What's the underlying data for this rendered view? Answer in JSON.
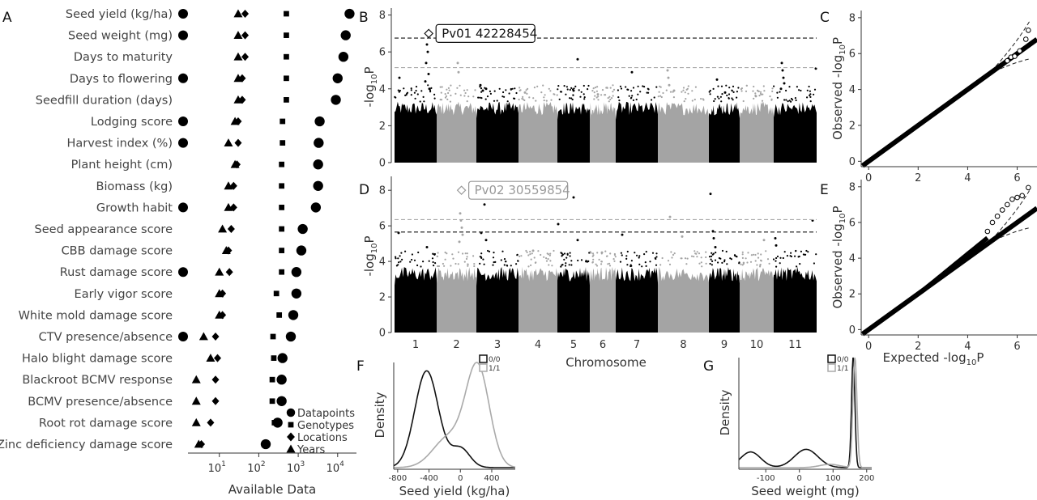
{
  "chart_data": [
    {
      "panel": "A",
      "type": "scatter",
      "xlabel": "Available Data",
      "xscale": "log",
      "xlim": [
        1.6,
        30000
      ],
      "x_ticks": [
        {
          "v": 10,
          "b": "10",
          "e": "1"
        },
        {
          "v": 100,
          "b": "10",
          "e": "2"
        },
        {
          "v": 1000,
          "b": "10",
          "e": "3"
        },
        {
          "v": 10000,
          "b": "10",
          "e": "4"
        }
      ],
      "legend": {
        "placement": "bottom-right",
        "items": [
          {
            "label": "Datapoints",
            "shape": "circle"
          },
          {
            "label": "Genotypes",
            "shape": "square"
          },
          {
            "label": "Locations",
            "shape": "diamond"
          },
          {
            "label": "Years",
            "shape": "triangle"
          }
        ]
      },
      "traits": [
        {
          "label": "Seed yield (kg/ha)",
          "datapoints": 20000,
          "genotypes": 500,
          "locations": 45,
          "years": 30,
          "circle_left": true
        },
        {
          "label": "Seed weight (mg)",
          "datapoints": 16000,
          "genotypes": 500,
          "locations": 45,
          "years": 30,
          "circle_left": true
        },
        {
          "label": "Days to maturity",
          "datapoints": 14000,
          "genotypes": 500,
          "locations": 45,
          "years": 30,
          "circle_left": false
        },
        {
          "label": "Days to flowering",
          "datapoints": 10000,
          "genotypes": 500,
          "locations": 38,
          "years": 30,
          "circle_left": true
        },
        {
          "label": "Seedfill duration (days)",
          "datapoints": 9000,
          "genotypes": 500,
          "locations": 38,
          "years": 30,
          "circle_left": false
        },
        {
          "label": "Lodging score",
          "datapoints": 3500,
          "genotypes": 400,
          "locations": 30,
          "years": 25,
          "circle_left": true
        },
        {
          "label": "Harvest index (%)",
          "datapoints": 3300,
          "genotypes": 400,
          "locations": 30,
          "years": 17,
          "circle_left": true
        },
        {
          "label": "Plant height (cm)",
          "datapoints": 3200,
          "genotypes": 380,
          "locations": 28,
          "years": 25,
          "circle_left": false
        },
        {
          "label": "Biomass (kg)",
          "datapoints": 3200,
          "genotypes": 380,
          "locations": 23,
          "years": 17,
          "circle_left": false
        },
        {
          "label": "Growth habit",
          "datapoints": 2800,
          "genotypes": 380,
          "locations": 23,
          "years": 17,
          "circle_left": true
        },
        {
          "label": "Seed appearance score",
          "datapoints": 1300,
          "genotypes": 380,
          "locations": 20,
          "years": 12,
          "circle_left": false
        },
        {
          "label": "CBB damage score",
          "datapoints": 1200,
          "genotypes": 380,
          "locations": 17,
          "years": 15,
          "circle_left": false
        },
        {
          "label": "Rust damage score",
          "datapoints": 900,
          "genotypes": 380,
          "locations": 18,
          "years": 10,
          "circle_left": true
        },
        {
          "label": "Early vigor score",
          "datapoints": 900,
          "genotypes": 280,
          "locations": 12,
          "years": 10,
          "circle_left": false
        },
        {
          "label": "White mold damage score",
          "datapoints": 750,
          "genotypes": 330,
          "locations": 12,
          "years": 10,
          "circle_left": false
        },
        {
          "label": "CTV presence/absence",
          "datapoints": 650,
          "genotypes": 230,
          "locations": 8,
          "years": 4,
          "circle_left": true
        },
        {
          "label": "Halo blight damage score",
          "datapoints": 400,
          "genotypes": 240,
          "locations": 9,
          "years": 6,
          "circle_left": false
        },
        {
          "label": "Blackroot BCMV response",
          "datapoints": 380,
          "genotypes": 220,
          "locations": 8,
          "years": 2.6,
          "circle_left": false
        },
        {
          "label": "BCMV presence/absence",
          "datapoints": 380,
          "genotypes": 220,
          "locations": 8,
          "years": 2.6,
          "circle_left": false
        },
        {
          "label": "Root rot damage score",
          "datapoints": 300,
          "genotypes": 250,
          "locations": 6,
          "years": 2.6,
          "circle_left": false
        },
        {
          "label": "Zinc deficiency damage score",
          "datapoints": 150,
          "genotypes": 140,
          "locations": 3.5,
          "years": 3,
          "circle_left": false
        }
      ]
    },
    {
      "panel": "B",
      "type": "scatter",
      "xlabel": "",
      "ylabel": "-log10P",
      "ylim": [
        0,
        8.2
      ],
      "y_ticks": [
        0,
        2,
        4,
        6,
        8
      ],
      "chromosome_mb": [
        52,
        49,
        52,
        48,
        40,
        32,
        52,
        63,
        38,
        42,
        53
      ],
      "baseline_max": 3.3,
      "thresholds": [
        {
          "y": 6.75,
          "color": "#111111"
        },
        {
          "y": 5.15,
          "color": "#aaaaaa"
        }
      ],
      "annotation": {
        "text": "Pv01 42228454",
        "chr": 1,
        "pos": 42.2,
        "y": 7.0
      },
      "peaks": [
        {
          "chr": 1,
          "pos": 40,
          "y": 6.4
        },
        {
          "chr": 1,
          "pos": 41,
          "y": 6.0
        },
        {
          "chr": 1,
          "pos": 39,
          "y": 5.4
        },
        {
          "chr": 1,
          "pos": 42,
          "y": 4.8
        },
        {
          "chr": 1,
          "pos": 6,
          "y": 4.6
        },
        {
          "chr": 1,
          "pos": 38,
          "y": 4.4
        },
        {
          "chr": 1,
          "pos": 43,
          "y": 4.0
        },
        {
          "chr": 2,
          "pos": 26,
          "y": 5.4
        },
        {
          "chr": 2,
          "pos": 27,
          "y": 4.9
        },
        {
          "chr": 3,
          "pos": 5,
          "y": 4.2
        },
        {
          "chr": 3,
          "pos": 8,
          "y": 3.9
        },
        {
          "chr": 3,
          "pos": 12,
          "y": 4.0
        },
        {
          "chr": 4,
          "pos": 8,
          "y": 3.8
        },
        {
          "chr": 5,
          "pos": 25,
          "y": 5.6
        },
        {
          "chr": 5,
          "pos": 20,
          "y": 3.9
        },
        {
          "chr": 6,
          "pos": 10,
          "y": 3.7
        },
        {
          "chr": 7,
          "pos": 20,
          "y": 4.9
        },
        {
          "chr": 8,
          "pos": 12,
          "y": 5.0
        },
        {
          "chr": 8,
          "pos": 13,
          "y": 4.6
        },
        {
          "chr": 8,
          "pos": 14,
          "y": 4.2
        },
        {
          "chr": 8,
          "pos": 20,
          "y": 3.9
        },
        {
          "chr": 9,
          "pos": 10,
          "y": 4.5
        },
        {
          "chr": 9,
          "pos": 20,
          "y": 3.8
        },
        {
          "chr": 10,
          "pos": 20,
          "y": 3.6
        },
        {
          "chr": 11,
          "pos": 10,
          "y": 5.4
        },
        {
          "chr": 11,
          "pos": 11,
          "y": 5.0
        },
        {
          "chr": 11,
          "pos": 12,
          "y": 4.6
        },
        {
          "chr": 11,
          "pos": 13,
          "y": 4.3
        },
        {
          "chr": 11,
          "pos": 9,
          "y": 4.0
        },
        {
          "chr": 11,
          "pos": 52,
          "y": 5.1
        }
      ]
    },
    {
      "panel": "C",
      "type": "scatter",
      "xlabel": "",
      "ylabel": "Observed -log10P",
      "xlim": [
        -0.3,
        6.8
      ],
      "ylim": [
        -0.3,
        8.4
      ],
      "x_ticks": [
        0,
        2,
        4,
        6
      ],
      "y_ticks": [
        0,
        2,
        4,
        6,
        8
      ],
      "expected_max": 6.45,
      "tail": [
        {
          "x": 5.6,
          "y": 5.6
        },
        {
          "x": 5.75,
          "y": 5.8
        },
        {
          "x": 5.9,
          "y": 5.85
        },
        {
          "x": 6.1,
          "y": 6.15
        },
        {
          "x": 6.35,
          "y": 6.8
        },
        {
          "x": 6.45,
          "y": 7.3
        }
      ]
    },
    {
      "panel": "D",
      "type": "scatter",
      "xlabel": "Chromosome",
      "ylabel": "-log10P",
      "ylim": [
        0,
        8.6
      ],
      "y_ticks": [
        0,
        2,
        4,
        6,
        8
      ],
      "chromosomes": [
        "1",
        "2",
        "3",
        "4",
        "5",
        "6",
        "7",
        "8",
        "9",
        "10",
        "11"
      ],
      "chromosome_mb": [
        52,
        49,
        52,
        48,
        40,
        32,
        52,
        63,
        38,
        42,
        53
      ],
      "baseline_max": 3.7,
      "thresholds": [
        {
          "y": 6.35,
          "color": "#aaaaaa"
        },
        {
          "y": 5.65,
          "color": "#111111"
        }
      ],
      "annotation": {
        "text": "Pv02 30559854",
        "chr": 2,
        "pos": 30.6,
        "y": 8.0
      },
      "peaks": [
        {
          "chr": 1,
          "pos": 5,
          "y": 5.6
        },
        {
          "chr": 1,
          "pos": 40,
          "y": 4.8
        },
        {
          "chr": 2,
          "pos": 29,
          "y": 6.7
        },
        {
          "chr": 2,
          "pos": 30,
          "y": 6.3
        },
        {
          "chr": 2,
          "pos": 31,
          "y": 5.9
        },
        {
          "chr": 2,
          "pos": 32,
          "y": 5.5
        },
        {
          "chr": 2,
          "pos": 28,
          "y": 5.1
        },
        {
          "chr": 3,
          "pos": 10,
          "y": 7.2
        },
        {
          "chr": 3,
          "pos": 6,
          "y": 5.6
        },
        {
          "chr": 3,
          "pos": 12,
          "y": 5.2
        },
        {
          "chr": 4,
          "pos": 18,
          "y": 4.6
        },
        {
          "chr": 5,
          "pos": 1,
          "y": 6.1
        },
        {
          "chr": 5,
          "pos": 20,
          "y": 7.6
        },
        {
          "chr": 5,
          "pos": 25,
          "y": 5.2
        },
        {
          "chr": 6,
          "pos": 15,
          "y": 4.5
        },
        {
          "chr": 7,
          "pos": 8,
          "y": 5.5
        },
        {
          "chr": 8,
          "pos": 15,
          "y": 6.5
        },
        {
          "chr": 8,
          "pos": 30,
          "y": 5.4
        },
        {
          "chr": 9,
          "pos": 2,
          "y": 7.8
        },
        {
          "chr": 9,
          "pos": 5,
          "y": 5.7
        },
        {
          "chr": 9,
          "pos": 6,
          "y": 5.3
        },
        {
          "chr": 9,
          "pos": 8,
          "y": 4.8
        },
        {
          "chr": 10,
          "pos": 30,
          "y": 5.2
        },
        {
          "chr": 11,
          "pos": 2,
          "y": 5.3
        },
        {
          "chr": 11,
          "pos": 3,
          "y": 4.9
        },
        {
          "chr": 11,
          "pos": 48,
          "y": 6.3
        }
      ]
    },
    {
      "panel": "E",
      "type": "scatter",
      "xlabel": "Expected -log10P",
      "ylabel": "Observed -log10P",
      "xlim": [
        -0.3,
        6.8
      ],
      "ylim": [
        -0.3,
        8.4
      ],
      "x_ticks": [
        0,
        2,
        4,
        6
      ],
      "y_ticks": [
        0,
        2,
        4,
        6,
        8
      ],
      "expected_max": 6.45,
      "lambda_slope": 1.13,
      "tail": [
        {
          "x": 4.8,
          "y": 5.5
        },
        {
          "x": 5.0,
          "y": 6.0
        },
        {
          "x": 5.2,
          "y": 6.35
        },
        {
          "x": 5.4,
          "y": 6.7
        },
        {
          "x": 5.6,
          "y": 7.0
        },
        {
          "x": 5.8,
          "y": 7.3
        },
        {
          "x": 6.0,
          "y": 7.4
        },
        {
          "x": 6.2,
          "y": 7.5
        },
        {
          "x": 6.45,
          "y": 7.95
        }
      ]
    },
    {
      "panel": "F",
      "type": "line",
      "xlabel": "Seed yield (kg/ha)",
      "ylabel": "Density",
      "xlim": [
        -850,
        700
      ],
      "x_ticks": [
        -800,
        -400,
        0,
        400
      ],
      "legend": {
        "placement": "top-right",
        "items": [
          {
            "label": "0/0",
            "color": "#111111"
          },
          {
            "label": "1/1",
            "color": "#aaaaaa"
          }
        ]
      },
      "series": [
        {
          "name": "0/0",
          "color": "#111111",
          "components": [
            {
              "mu": -430,
              "sd": 150,
              "w": 1.0
            },
            {
              "mu": 0,
              "sd": 120,
              "w": 0.2
            }
          ]
        },
        {
          "name": "1/1",
          "color": "#aaaaaa",
          "components": [
            {
              "mu": 220,
              "sd": 150,
              "w": 1.0
            },
            {
              "mu": -150,
              "sd": 200,
              "w": 0.3
            }
          ]
        }
      ]
    },
    {
      "panel": "G",
      "type": "line",
      "xlabel": "Seed weight (mg)",
      "ylabel": "Density",
      "xlim": [
        -180,
        215
      ],
      "x_ticks": [
        -100,
        0,
        100,
        200
      ],
      "legend": {
        "placement": "top-right",
        "items": [
          {
            "label": "0/0",
            "color": "#111111"
          },
          {
            "label": "1/1",
            "color": "#aaaaaa"
          }
        ]
      },
      "series": [
        {
          "name": "0/0",
          "color": "#111111",
          "components": [
            {
              "mu": -145,
              "sd": 30,
              "w": 0.12
            },
            {
              "mu": 20,
              "sd": 35,
              "w": 0.14
            },
            {
              "mu": 160,
              "sd": 5,
              "w": 0.85
            }
          ]
        },
        {
          "name": "1/1",
          "color": "#aaaaaa",
          "components": [
            {
              "mu": 165,
              "sd": 6,
              "w": 1.0
            },
            {
              "mu": 90,
              "sd": 30,
              "w": 0.03
            }
          ]
        }
      ]
    }
  ]
}
